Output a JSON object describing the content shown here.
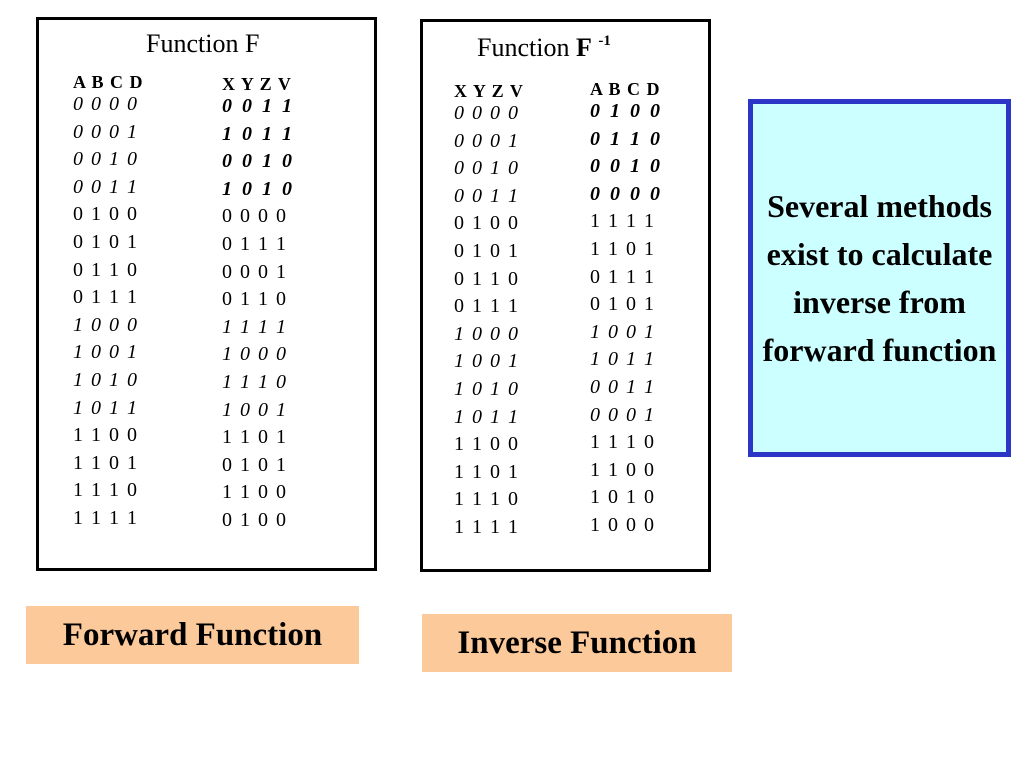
{
  "forward": {
    "title": "Function F",
    "input_header": "A B C D",
    "output_header": "X Y Z V",
    "rows": [
      {
        "in": "0 0 0 0",
        "out": "0 0 1 1",
        "in_style": "it",
        "out_style": "bi"
      },
      {
        "in": "0 0 0 1",
        "out": "1 0 1 1",
        "in_style": "it",
        "out_style": "bi"
      },
      {
        "in": "0 0 1 0",
        "out": "0 0 1 0",
        "in_style": "it",
        "out_style": "bi"
      },
      {
        "in": "0 0 1 1",
        "out": "1 0 1 0",
        "in_style": "it",
        "out_style": "bi"
      },
      {
        "in": "0 1 0 0",
        "out": "0 0 0 0",
        "in_style": "",
        "out_style": ""
      },
      {
        "in": "0 1 0 1",
        "out": "0 1 1 1",
        "in_style": "",
        "out_style": ""
      },
      {
        "in": "0 1 1 0",
        "out": "0 0 0 1",
        "in_style": "",
        "out_style": ""
      },
      {
        "in": "0 1 1 1",
        "out": "0 1 1 0",
        "in_style": "",
        "out_style": ""
      },
      {
        "in": "1 0 0 0",
        "out": "1 1 1 1",
        "in_style": "it",
        "out_style": "it"
      },
      {
        "in": "1 0 0 1",
        "out": "1 0 0 0",
        "in_style": "it",
        "out_style": "it"
      },
      {
        "in": "1 0 1 0",
        "out": "1 1 1 0",
        "in_style": "it",
        "out_style": "it"
      },
      {
        "in": "1 0 1 1",
        "out": "1 0 0 1",
        "in_style": "it",
        "out_style": "it"
      },
      {
        "in": "1 1 0 0",
        "out": "1 1 0 1",
        "in_style": "",
        "out_style": ""
      },
      {
        "in": "1 1 0 1",
        "out": "0 1 0 1",
        "in_style": "",
        "out_style": ""
      },
      {
        "in": "1 1 1 0",
        "out": "1 1 0 0",
        "in_style": "",
        "out_style": ""
      },
      {
        "in": "1 1 1 1",
        "out": "0 1 0 0",
        "in_style": "",
        "out_style": ""
      }
    ]
  },
  "inverse": {
    "title_prefix": "Function",
    "title_bold": "F",
    "title_sup": "-1",
    "input_header": "X Y Z V",
    "output_header": "A B C D",
    "rows": [
      {
        "in": "0 0 0 0",
        "out": "0 1 0 0",
        "in_style": "it",
        "out_style": "bi"
      },
      {
        "in": "0 0 0 1",
        "out": "0 1 1 0",
        "in_style": "it",
        "out_style": "bi"
      },
      {
        "in": "0 0 1 0",
        "out": "0 0 1 0",
        "in_style": "it",
        "out_style": "bi"
      },
      {
        "in": "0 0 1 1",
        "out": "0 0 0 0",
        "in_style": "it",
        "out_style": "bi"
      },
      {
        "in": "0 1 0 0",
        "out": "1 1 1 1",
        "in_style": "",
        "out_style": ""
      },
      {
        "in": "0 1 0 1",
        "out": "1 1 0 1",
        "in_style": "",
        "out_style": ""
      },
      {
        "in": "0 1 1 0",
        "out": "0 1 1 1",
        "in_style": "",
        "out_style": ""
      },
      {
        "in": "0 1 1 1",
        "out": "0 1 0 1",
        "in_style": "",
        "out_style": ""
      },
      {
        "in": "1 0 0 0",
        "out": "1 0 0 1",
        "in_style": "it",
        "out_style": "it"
      },
      {
        "in": "1 0 0 1",
        "out": "1 0 1 1",
        "in_style": "it",
        "out_style": "it"
      },
      {
        "in": "1 0 1 0",
        "out": "0 0 1 1",
        "in_style": "it",
        "out_style": "it"
      },
      {
        "in": "1 0 1 1",
        "out": "0 0 0 1",
        "in_style": "it",
        "out_style": "it"
      },
      {
        "in": "1 1 0 0",
        "out": "1 1 1 0",
        "in_style": "",
        "out_style": ""
      },
      {
        "in": "1 1 0 1",
        "out": "1 1 0 0",
        "in_style": "",
        "out_style": ""
      },
      {
        "in": "1 1 1 0",
        "out": "1 0 1 0",
        "in_style": "",
        "out_style": ""
      },
      {
        "in": "1 1 1 1",
        "out": "1 0 0 0",
        "in_style": "",
        "out_style": ""
      }
    ]
  },
  "labels": {
    "forward": "Forward Function",
    "inverse": "Inverse Function"
  },
  "note": {
    "text": "Several methods exist to calculate inverse from forward function"
  },
  "colors": {
    "label_background": "#fcc99a",
    "note_background": "#ccffff",
    "note_border": "#2b35c6"
  }
}
